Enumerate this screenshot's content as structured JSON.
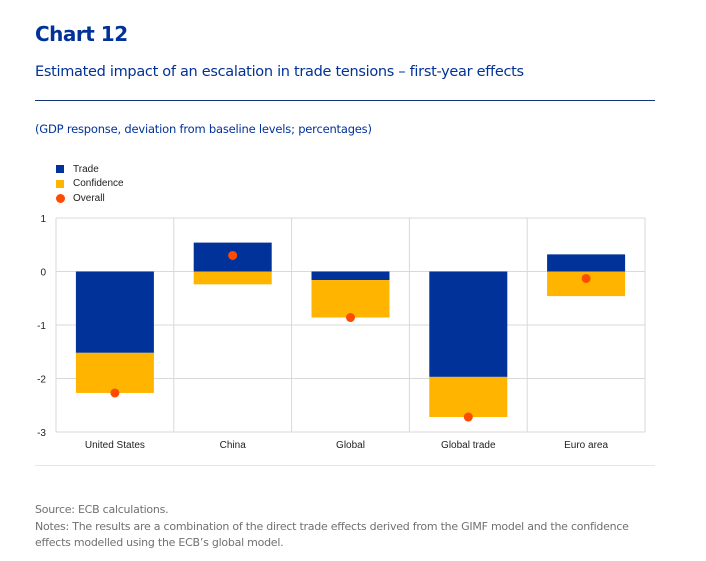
{
  "header": {
    "title": "Chart 12",
    "subtitle": "Estimated impact of an escalation in trade tensions – first-year effects",
    "units": "(GDP response, deviation from baseline levels; percentages)"
  },
  "footer": {
    "source": "Source: ECB calculations.",
    "notes": "Notes: The results are a combination of the direct trade effects derived from the GIMF model and the confidence effects modelled using the ECB’s global model."
  },
  "colors": {
    "trade": "#003299",
    "confidence": "#ffb400",
    "overall": "#ff4b00",
    "grid": "#d9d9d9"
  },
  "chart_data": {
    "type": "bar",
    "stacked": true,
    "title": "Estimated impact of an escalation in trade tensions – first-year effects",
    "ylabel": "GDP response, deviation from baseline levels; percentages",
    "xlabel": "",
    "ylim": [
      -3,
      1
    ],
    "yticks": [
      1,
      0,
      -1,
      -2,
      -3
    ],
    "grid": true,
    "legend_position": "top-left",
    "categories": [
      "United States",
      "China",
      "Global",
      "Global trade",
      "Euro area"
    ],
    "series": [
      {
        "name": "Trade",
        "kind": "bar",
        "values": [
          -1.52,
          0.54,
          -0.16,
          -1.97,
          0.32
        ]
      },
      {
        "name": "Confidence",
        "kind": "bar",
        "values": [
          -0.75,
          -0.24,
          -0.7,
          -0.75,
          -0.46
        ]
      },
      {
        "name": "Overall",
        "kind": "dot",
        "values": [
          -2.27,
          0.3,
          -0.86,
          -2.72,
          -0.13
        ]
      }
    ]
  }
}
